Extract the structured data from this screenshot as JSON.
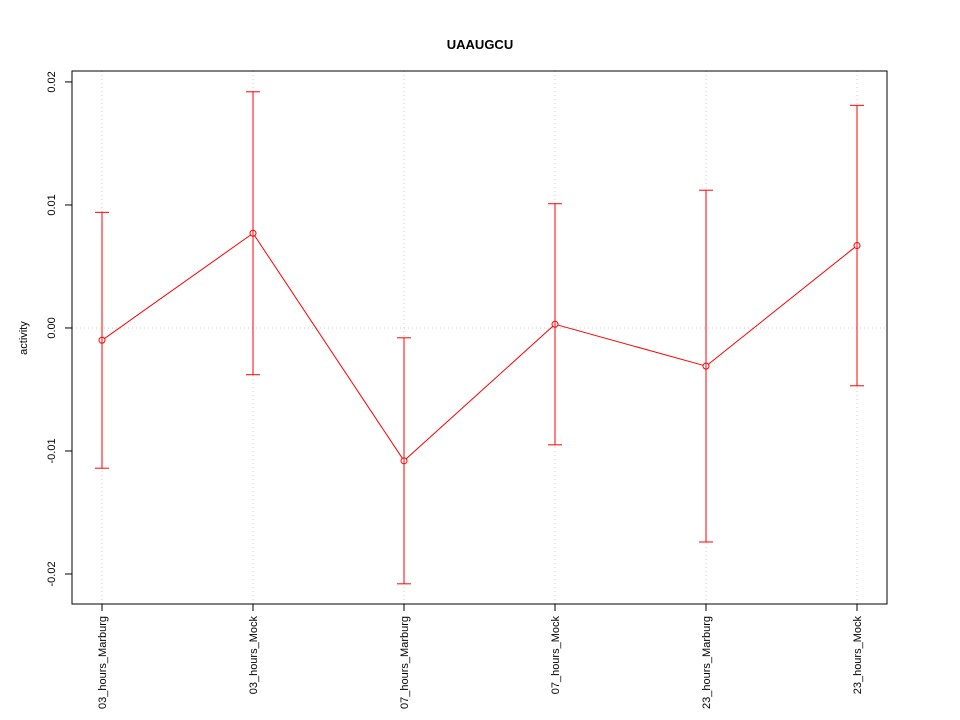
{
  "chart_data": {
    "type": "errorbar",
    "title": "UAAUGCU",
    "y_label": "activity",
    "categories": [
      "03_hours_Marburg",
      "03_hours_Mock",
      "07_hours_Marburg",
      "07_hours_Mock",
      "23_hours_Marburg",
      "23_hours_Mock"
    ],
    "values": [
      -0.001,
      0.0077,
      -0.0108,
      0.0003,
      -0.0031,
      0.0067
    ],
    "errors": [
      0.0104,
      0.0115,
      0.01,
      0.0098,
      0.0143,
      0.0114
    ],
    "color": "#ff0000",
    "ylim": [
      -0.02244,
      0.02089
    ],
    "yticks": [
      -0.02,
      -0.01,
      {
        "value": 0,
        "label": "0.00"
      },
      0.01,
      0.02
    ],
    "reference_line": 0,
    "grid": true
  }
}
